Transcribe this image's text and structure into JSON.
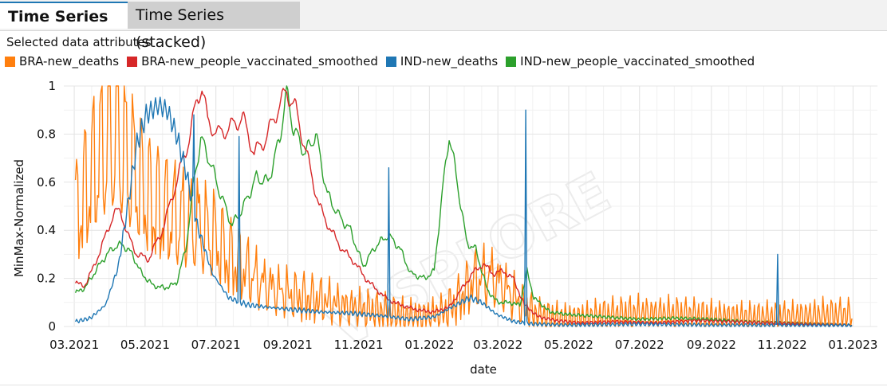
{
  "tabs": [
    {
      "label": "Time Series",
      "active": true
    },
    {
      "label": "Time Series (stacked)",
      "active": false
    }
  ],
  "attributes_title": "Selected data attributes",
  "watermark": "VISPLORE",
  "chart_data": {
    "type": "line",
    "xlabel": "date",
    "ylabel": "MinMax-Normalized",
    "ylim": [
      0,
      1
    ],
    "xlim": [
      "2021-02-20",
      "2023-01-22"
    ],
    "grid": true,
    "legend_position": "top-left",
    "y_ticks": [
      "0",
      "0.2",
      "0.4",
      "0.6",
      "0.8",
      "1"
    ],
    "x_ticks": [
      {
        "label": "03.2021",
        "date": "2021-03-01"
      },
      {
        "label": "05.2021",
        "date": "2021-05-01"
      },
      {
        "label": "07.2021",
        "date": "2021-07-01"
      },
      {
        "label": "09.2021",
        "date": "2021-09-01"
      },
      {
        "label": "11.2021",
        "date": "2021-11-01"
      },
      {
        "label": "01.2022",
        "date": "2022-01-01"
      },
      {
        "label": "03.2022",
        "date": "2022-03-01"
      },
      {
        "label": "05.2022",
        "date": "2022-05-01"
      },
      {
        "label": "07.2022",
        "date": "2022-07-01"
      },
      {
        "label": "09.2022",
        "date": "2022-09-01"
      },
      {
        "label": "11.2022",
        "date": "2022-11-01"
      },
      {
        "label": "01.2023",
        "date": "2023-01-01"
      }
    ],
    "series": [
      {
        "name": "BRA-new_deaths",
        "color": "#ff7f0e",
        "oscillation": {
          "amplitude": 0.45,
          "period_days": 7
        },
        "points": [
          [
            "2021-03-02",
            0.42
          ],
          [
            "2021-03-12",
            0.55
          ],
          [
            "2021-03-25",
            0.7
          ],
          [
            "2021-04-06",
            0.76
          ],
          [
            "2021-04-20",
            0.62
          ],
          [
            "2021-05-04",
            0.5
          ],
          [
            "2021-05-18",
            0.45
          ],
          [
            "2021-06-01",
            0.42
          ],
          [
            "2021-06-15",
            0.4
          ],
          [
            "2021-06-29",
            0.35
          ],
          [
            "2021-07-13",
            0.27
          ],
          [
            "2021-07-27",
            0.22
          ],
          [
            "2021-08-10",
            0.17
          ],
          [
            "2021-08-24",
            0.14
          ],
          [
            "2021-09-07",
            0.12
          ],
          [
            "2021-09-21",
            0.11
          ],
          [
            "2021-10-05",
            0.1
          ],
          [
            "2021-10-19",
            0.08
          ],
          [
            "2021-11-02",
            0.07
          ],
          [
            "2021-11-16",
            0.06
          ],
          [
            "2021-11-30",
            0.05
          ],
          [
            "2021-12-14",
            0.04
          ],
          [
            "2021-12-28",
            0.04
          ],
          [
            "2022-01-11",
            0.05
          ],
          [
            "2022-01-25",
            0.1
          ],
          [
            "2022-02-08",
            0.18
          ],
          [
            "2022-02-22",
            0.2
          ],
          [
            "2022-03-08",
            0.15
          ],
          [
            "2022-03-22",
            0.08
          ],
          [
            "2022-04-05",
            0.04
          ],
          [
            "2022-04-19",
            0.03
          ],
          [
            "2022-05-03",
            0.025
          ],
          [
            "2022-06-01",
            0.04
          ],
          [
            "2022-07-01",
            0.05
          ],
          [
            "2022-08-01",
            0.045
          ],
          [
            "2022-09-01",
            0.035
          ],
          [
            "2022-10-01",
            0.03
          ],
          [
            "2022-11-01",
            0.03
          ],
          [
            "2022-12-01",
            0.04
          ],
          [
            "2022-12-31",
            0.04
          ]
        ]
      },
      {
        "name": "BRA-new_people_vaccinated_smoothed",
        "color": "#d62728",
        "oscillation": {
          "amplitude": 0.04,
          "period_days": 11
        },
        "points": [
          [
            "2021-03-02",
            0.18
          ],
          [
            "2021-03-10",
            0.17
          ],
          [
            "2021-03-18",
            0.25
          ],
          [
            "2021-03-26",
            0.35
          ],
          [
            "2021-04-04",
            0.47
          ],
          [
            "2021-04-10",
            0.48
          ],
          [
            "2021-04-16",
            0.38
          ],
          [
            "2021-04-24",
            0.3
          ],
          [
            "2021-05-04",
            0.28
          ],
          [
            "2021-05-16",
            0.4
          ],
          [
            "2021-05-28",
            0.6
          ],
          [
            "2021-06-08",
            0.78
          ],
          [
            "2021-06-15",
            0.95
          ],
          [
            "2021-06-19",
            1.0
          ],
          [
            "2021-06-24",
            0.85
          ],
          [
            "2021-07-03",
            0.8
          ],
          [
            "2021-07-14",
            0.83
          ],
          [
            "2021-07-24",
            0.87
          ],
          [
            "2021-08-03",
            0.72
          ],
          [
            "2021-08-13",
            0.78
          ],
          [
            "2021-08-23",
            0.9
          ],
          [
            "2021-08-31",
            0.98
          ],
          [
            "2021-09-08",
            0.9
          ],
          [
            "2021-09-18",
            0.7
          ],
          [
            "2021-09-28",
            0.5
          ],
          [
            "2021-10-08",
            0.4
          ],
          [
            "2021-10-18",
            0.32
          ],
          [
            "2021-10-28",
            0.27
          ],
          [
            "2021-11-07",
            0.2
          ],
          [
            "2021-11-17",
            0.15
          ],
          [
            "2021-11-27",
            0.11
          ],
          [
            "2021-12-07",
            0.09
          ],
          [
            "2021-12-21",
            0.07
          ],
          [
            "2022-01-04",
            0.06
          ],
          [
            "2022-01-18",
            0.08
          ],
          [
            "2022-01-28",
            0.15
          ],
          [
            "2022-02-07",
            0.22
          ],
          [
            "2022-02-16",
            0.26
          ],
          [
            "2022-02-25",
            0.22
          ],
          [
            "2022-03-06",
            0.23
          ],
          [
            "2022-03-14",
            0.2
          ],
          [
            "2022-03-24",
            0.09
          ],
          [
            "2022-04-05",
            0.04
          ],
          [
            "2022-04-20",
            0.025
          ],
          [
            "2022-05-10",
            0.015
          ],
          [
            "2022-06-10",
            0.02
          ],
          [
            "2022-07-15",
            0.015
          ],
          [
            "2022-08-20",
            0.025
          ],
          [
            "2022-09-20",
            0.02
          ],
          [
            "2022-10-20",
            0.015
          ],
          [
            "2022-11-20",
            0.01
          ],
          [
            "2022-12-31",
            0.005
          ]
        ]
      },
      {
        "name": "IND-new_deaths",
        "color": "#1f77b4",
        "oscillation": {
          "amplitude": 0.05,
          "period_days": 4
        },
        "points": [
          [
            "2021-03-02",
            0.02
          ],
          [
            "2021-03-15",
            0.035
          ],
          [
            "2021-03-28",
            0.09
          ],
          [
            "2021-04-08",
            0.25
          ],
          [
            "2021-04-16",
            0.5
          ],
          [
            "2021-04-24",
            0.76
          ],
          [
            "2021-05-02",
            0.88
          ],
          [
            "2021-05-12",
            0.92
          ],
          [
            "2021-05-20",
            0.9
          ],
          [
            "2021-05-28",
            0.8
          ],
          [
            "2021-06-05",
            0.65
          ],
          [
            "2021-06-15",
            0.42
          ],
          [
            "2021-06-28",
            0.22
          ],
          [
            "2021-07-12",
            0.12
          ],
          [
            "2021-07-28",
            0.09
          ],
          [
            "2021-08-15",
            0.08
          ],
          [
            "2021-09-05",
            0.07
          ],
          [
            "2021-10-01",
            0.06
          ],
          [
            "2021-10-25",
            0.055
          ],
          [
            "2021-11-20",
            0.045
          ],
          [
            "2021-12-15",
            0.03
          ],
          [
            "2022-01-05",
            0.04
          ],
          [
            "2022-01-20",
            0.08
          ],
          [
            "2022-02-05",
            0.12
          ],
          [
            "2022-02-15",
            0.1
          ],
          [
            "2022-02-28",
            0.05
          ],
          [
            "2022-03-15",
            0.02
          ],
          [
            "2022-04-01",
            0.01
          ],
          [
            "2022-05-01",
            0.006
          ],
          [
            "2022-07-01",
            0.01
          ],
          [
            "2022-09-01",
            0.006
          ],
          [
            "2022-11-01",
            0.005
          ],
          [
            "2022-12-31",
            0.004
          ]
        ],
        "spikes": [
          [
            "2021-06-12",
            0.88
          ],
          [
            "2021-07-21",
            0.79
          ],
          [
            "2021-11-27",
            0.66
          ],
          [
            "2022-03-25",
            0.9
          ],
          [
            "2022-10-28",
            0.3
          ]
        ]
      },
      {
        "name": "IND-new_people_vaccinated_smoothed",
        "color": "#2ca02c",
        "oscillation": {
          "amplitude": 0.04,
          "period_days": 9
        },
        "points": [
          [
            "2021-03-02",
            0.14
          ],
          [
            "2021-03-10",
            0.16
          ],
          [
            "2021-03-18",
            0.22
          ],
          [
            "2021-03-26",
            0.28
          ],
          [
            "2021-04-04",
            0.33
          ],
          [
            "2021-04-12",
            0.34
          ],
          [
            "2021-04-20",
            0.3
          ],
          [
            "2021-04-28",
            0.22
          ],
          [
            "2021-05-08",
            0.17
          ],
          [
            "2021-05-18",
            0.16
          ],
          [
            "2021-05-28",
            0.18
          ],
          [
            "2021-06-05",
            0.32
          ],
          [
            "2021-06-12",
            0.6
          ],
          [
            "2021-06-18",
            0.78
          ],
          [
            "2021-06-25",
            0.7
          ],
          [
            "2021-07-05",
            0.55
          ],
          [
            "2021-07-15",
            0.42
          ],
          [
            "2021-07-25",
            0.5
          ],
          [
            "2021-08-05",
            0.62
          ],
          [
            "2021-08-15",
            0.6
          ],
          [
            "2021-08-25",
            0.78
          ],
          [
            "2021-08-31",
            0.98
          ],
          [
            "2021-09-06",
            0.82
          ],
          [
            "2021-09-16",
            0.72
          ],
          [
            "2021-09-25",
            0.8
          ],
          [
            "2021-10-05",
            0.55
          ],
          [
            "2021-10-15",
            0.46
          ],
          [
            "2021-10-25",
            0.4
          ],
          [
            "2021-11-05",
            0.25
          ],
          [
            "2021-11-15",
            0.33
          ],
          [
            "2021-11-26",
            0.38
          ],
          [
            "2021-12-06",
            0.33
          ],
          [
            "2021-12-16",
            0.22
          ],
          [
            "2021-12-28",
            0.2
          ],
          [
            "2022-01-05",
            0.23
          ],
          [
            "2022-01-12",
            0.55
          ],
          [
            "2022-01-18",
            0.8
          ],
          [
            "2022-01-25",
            0.6
          ],
          [
            "2022-02-02",
            0.35
          ],
          [
            "2022-02-10",
            0.32
          ],
          [
            "2022-02-20",
            0.15
          ],
          [
            "2022-03-01",
            0.1
          ],
          [
            "2022-03-10",
            0.1
          ],
          [
            "2022-03-20",
            0.09
          ],
          [
            "2022-03-26",
            0.23
          ],
          [
            "2022-04-01",
            0.12
          ],
          [
            "2022-04-15",
            0.06
          ],
          [
            "2022-05-01",
            0.05
          ],
          [
            "2022-06-01",
            0.04
          ],
          [
            "2022-07-01",
            0.03
          ],
          [
            "2022-08-01",
            0.035
          ],
          [
            "2022-09-01",
            0.03
          ],
          [
            "2022-10-01",
            0.02
          ],
          [
            "2022-11-01",
            0.015
          ],
          [
            "2022-12-01",
            0.01
          ],
          [
            "2022-12-31",
            0.005
          ]
        ]
      }
    ]
  }
}
